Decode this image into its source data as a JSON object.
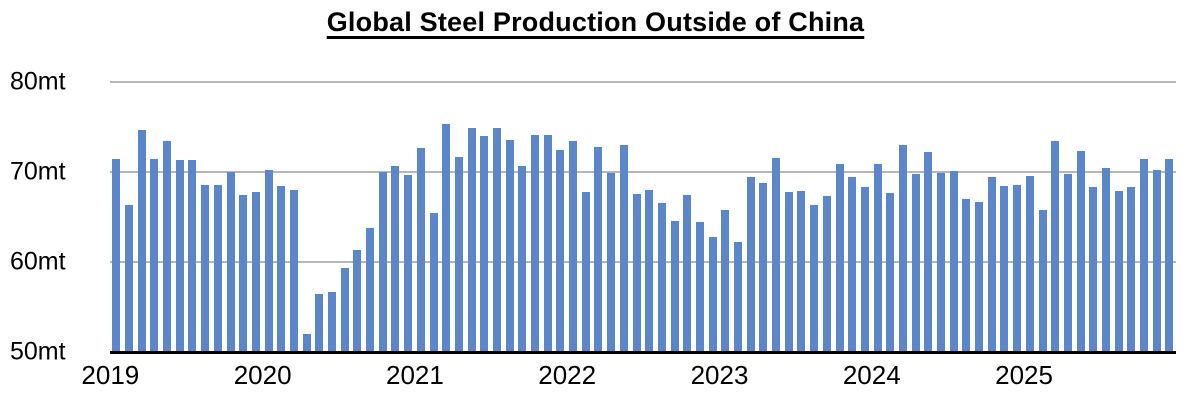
{
  "page_title": "Global Steel Production Outside of China",
  "colors": {
    "bar": "#5b87ca",
    "gridline": "#b7b7b7",
    "axis_line": "#000000",
    "text": "#000000",
    "background": "#ffffff"
  },
  "chart_data": {
    "type": "bar",
    "title": "Global Steel Production Outside of China",
    "xlabel": "",
    "ylabel": "",
    "unit": "mt",
    "ylim": [
      50,
      80
    ],
    "y_tick_labels": [
      "80mt",
      "70mt",
      "60mt",
      "50mt"
    ],
    "y_gridline_values": [
      80,
      70,
      60
    ],
    "baseline_value": 50,
    "grid": "horizontal",
    "legend": "none",
    "x_tick_labels": [
      "2019",
      "2020",
      "2021",
      "2022",
      "2023",
      "2024",
      "2025"
    ],
    "months_per_year": 12,
    "categories": [
      "2019-01",
      "2019-02",
      "2019-03",
      "2019-04",
      "2019-05",
      "2019-06",
      "2019-07",
      "2019-08",
      "2019-09",
      "2019-10",
      "2019-11",
      "2019-12",
      "2020-01",
      "2020-02",
      "2020-03",
      "2020-04",
      "2020-05",
      "2020-06",
      "2020-07",
      "2020-08",
      "2020-09",
      "2020-10",
      "2020-11",
      "2020-12",
      "2021-01",
      "2021-02",
      "2021-03",
      "2021-04",
      "2021-05",
      "2021-06",
      "2021-07",
      "2021-08",
      "2021-09",
      "2021-10",
      "2021-11",
      "2021-12",
      "2022-01",
      "2022-02",
      "2022-03",
      "2022-04",
      "2022-05",
      "2022-06",
      "2022-07",
      "2022-08",
      "2022-09",
      "2022-10",
      "2022-11",
      "2022-12",
      "2023-01",
      "2023-02",
      "2023-03",
      "2023-04",
      "2023-05",
      "2023-06",
      "2023-07",
      "2023-08",
      "2023-09",
      "2023-10",
      "2023-11",
      "2023-12",
      "2024-01",
      "2024-02",
      "2024-03",
      "2024-04",
      "2024-05",
      "2024-06",
      "2024-07",
      "2024-08",
      "2024-09",
      "2024-10",
      "2024-11",
      "2024-12",
      "2025-01",
      "2025-02",
      "2025-03",
      "2025-04",
      "2025-05",
      "2025-06",
      "2025-07",
      "2025-08",
      "2025-09",
      "2025-10",
      "2025-11",
      "2025-12"
    ],
    "series": [
      {
        "name": "Global steel production outside of China (million tonnes, monthly)",
        "values": [
          71.5,
          66.3,
          74.7,
          71.5,
          73.5,
          71.3,
          71.3,
          68.6,
          68.6,
          70.0,
          67.5,
          67.8,
          70.2,
          68.5,
          68.0,
          52.0,
          56.4,
          56.7,
          59.3,
          61.3,
          63.8,
          70.0,
          70.7,
          69.7,
          72.7,
          65.4,
          75.3,
          71.7,
          74.9,
          74.0,
          74.9,
          73.6,
          70.7,
          74.1,
          74.1,
          72.5,
          73.4,
          67.8,
          72.8,
          69.9,
          73.0,
          67.6,
          68.0,
          66.6,
          64.6,
          67.5,
          64.5,
          62.8,
          65.8,
          62.2,
          69.4,
          68.8,
          71.6,
          67.8,
          67.9,
          66.3,
          67.3,
          70.9,
          69.5,
          68.3,
          70.9,
          67.7,
          73.0,
          69.8,
          72.2,
          69.9,
          70.1,
          67.0,
          66.7,
          69.5,
          68.4,
          68.6,
          69.6,
          65.8,
          73.4,
          69.8,
          72.3,
          68.3,
          70.5,
          67.9,
          68.3,
          71.4,
          70.2,
          71.4
        ]
      }
    ]
  }
}
